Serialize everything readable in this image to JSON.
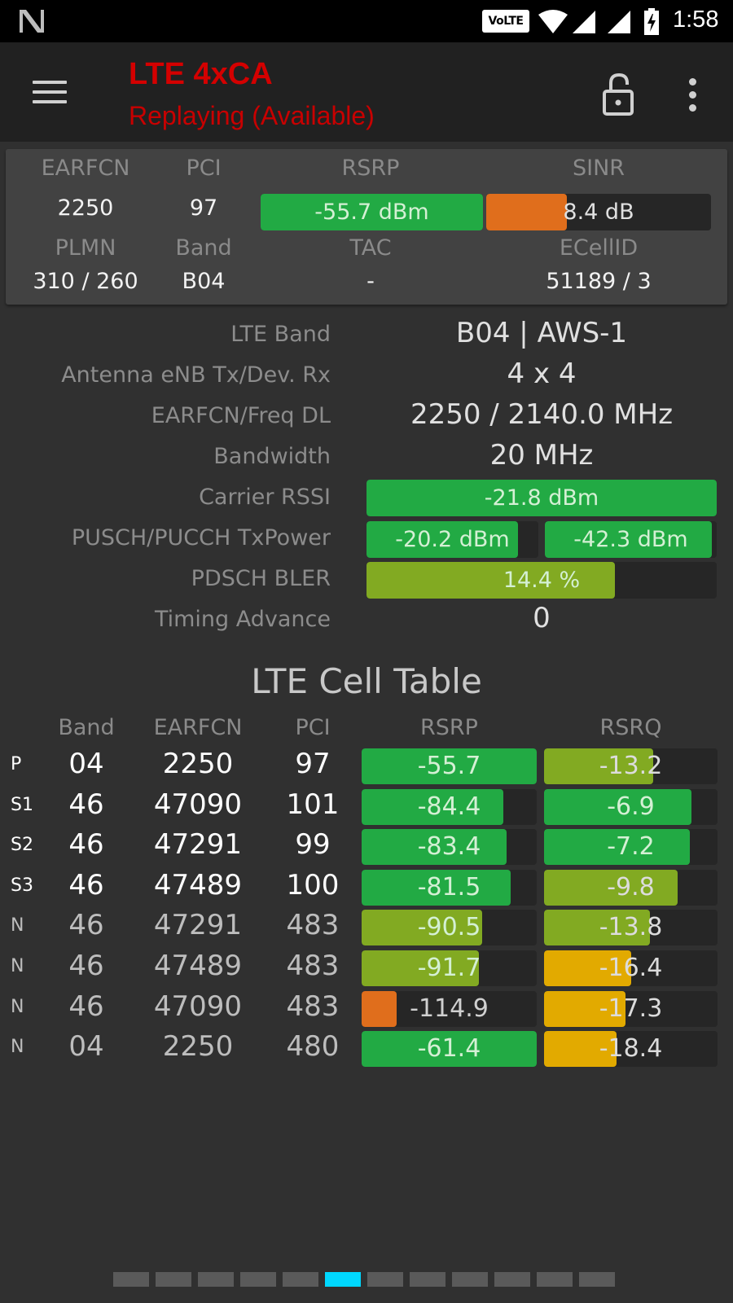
{
  "status_bar": {
    "notification_icon": "n-logo-icon",
    "volte_label": "VoLTE",
    "icons": [
      "volte-icon",
      "wifi-icon",
      "cell-signal-icon",
      "cell-signal-icon",
      "battery-charging-icon"
    ],
    "time": "1:58"
  },
  "toolbar": {
    "title": "LTE 4xCA",
    "subtitle": "Replaying (Available)",
    "title_color": "#d40000",
    "menu_icon": "hamburger-menu-icon",
    "lock_icon": "unlock-icon",
    "more_icon": "more-vertical-icon"
  },
  "summary": {
    "headers_top": [
      "EARFCN",
      "PCI",
      "RSRP",
      "SINR"
    ],
    "earfcn": "2250",
    "pci": "97",
    "rsrp": {
      "text": "-55.7 dBm",
      "fill_pct": 100,
      "color": "#22aa44"
    },
    "sinr": {
      "text": "8.4 dB",
      "fill_pct": 36,
      "color": "#e06e1c"
    },
    "headers_bottom": [
      "PLMN",
      "Band",
      "TAC",
      "ECellID"
    ],
    "plmn": "310 / 260",
    "band": "B04",
    "tac": "-",
    "ecellid": "51189 / 3"
  },
  "details": {
    "lte_band": {
      "label": "LTE Band",
      "value": "B04 | AWS-1"
    },
    "antenna": {
      "label": "Antenna eNB Tx/Dev. Rx",
      "value": "4 x 4"
    },
    "earfcn_freq": {
      "label": "EARFCN/Freq DL",
      "value": "2250 / 2140.0 MHz"
    },
    "bandwidth": {
      "label": "Bandwidth",
      "value": "20 MHz"
    },
    "carrier_rssi": {
      "label": "Carrier RSSI",
      "value": "-21.8 dBm",
      "fill_pct": 100,
      "color": "#22aa44"
    },
    "txpower": {
      "label": "PUSCH/PUCCH TxPower",
      "pusch": "-20.2 dBm",
      "pusch_fill_pct": 88,
      "pucch": "-42.3 dBm",
      "pucch_fill_pct": 97
    },
    "bler": {
      "label": "PDSCH BLER",
      "value": "14.4 %",
      "fill_pct": 71,
      "color": "#82aa22"
    },
    "timing_advance": {
      "label": "Timing Advance",
      "value": "0"
    }
  },
  "cell_table": {
    "title": "LTE Cell Table",
    "headers": [
      "Band",
      "EARFCN",
      "PCI",
      "RSRP",
      "RSRQ"
    ],
    "rows": [
      {
        "type": "P",
        "band": "04",
        "earfcn": "2250",
        "pci": "97",
        "rsrp": "-55.7",
        "rsrp_fill": 100,
        "rsrp_color": "#22aa44",
        "rsrq": "-13.2",
        "rsrq_fill": 63,
        "rsrq_color": "#82aa22",
        "serving": true
      },
      {
        "type": "S1",
        "band": "46",
        "earfcn": "47090",
        "pci": "101",
        "rsrp": "-84.4",
        "rsrp_fill": 81,
        "rsrp_color": "#22aa44",
        "rsrq": "-6.9",
        "rsrq_fill": 85,
        "rsrq_color": "#22aa44",
        "serving": true
      },
      {
        "type": "S2",
        "band": "46",
        "earfcn": "47291",
        "pci": "99",
        "rsrp": "-83.4",
        "rsrp_fill": 83,
        "rsrp_color": "#22aa44",
        "rsrq": "-7.2",
        "rsrq_fill": 84,
        "rsrq_color": "#22aa44",
        "serving": true
      },
      {
        "type": "S3",
        "band": "46",
        "earfcn": "47489",
        "pci": "100",
        "rsrp": "-81.5",
        "rsrp_fill": 85,
        "rsrp_color": "#22aa44",
        "rsrq": "-9.8",
        "rsrq_fill": 77,
        "rsrq_color": "#82aa22",
        "serving": true
      },
      {
        "type": "N",
        "band": "46",
        "earfcn": "47291",
        "pci": "483",
        "rsrp": "-90.5",
        "rsrp_fill": 69,
        "rsrp_color": "#82aa22",
        "rsrq": "-13.8",
        "rsrq_fill": 61,
        "rsrq_color": "#82aa22",
        "serving": false
      },
      {
        "type": "N",
        "band": "46",
        "earfcn": "47489",
        "pci": "483",
        "rsrp": "-91.7",
        "rsrp_fill": 67,
        "rsrp_color": "#82aa22",
        "rsrq": "-16.4",
        "rsrq_fill": 50,
        "rsrq_color": "#e2aa00",
        "serving": false
      },
      {
        "type": "N",
        "band": "46",
        "earfcn": "47090",
        "pci": "483",
        "rsrp": "-114.9",
        "rsrp_fill": 20,
        "rsrp_color": "#e06e1c",
        "rsrq": "-17.3",
        "rsrq_fill": 47,
        "rsrq_color": "#e2aa00",
        "serving": false
      },
      {
        "type": "N",
        "band": "04",
        "earfcn": "2250",
        "pci": "480",
        "rsrp": "-61.4",
        "rsrp_fill": 100,
        "rsrp_color": "#22aa44",
        "rsrq": "-18.4",
        "rsrq_fill": 42,
        "rsrq_color": "#e2aa00",
        "serving": false
      }
    ]
  },
  "pager": {
    "count": 12,
    "active_index": 5,
    "active_color": "#00d8ff"
  }
}
